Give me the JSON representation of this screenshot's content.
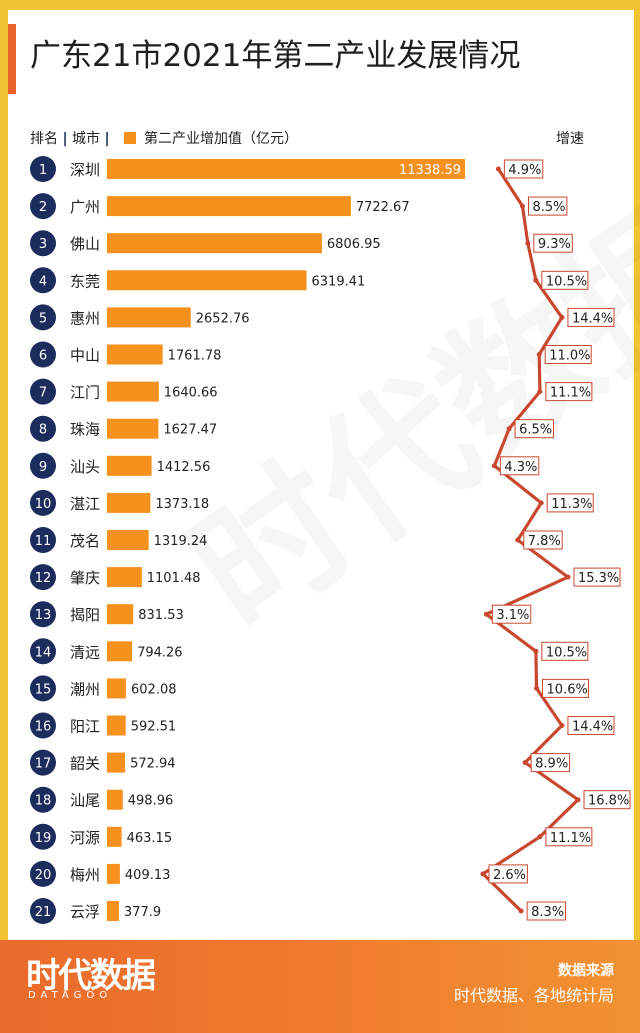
{
  "title": "广东21市2021年第二产业发展情况",
  "header": {
    "rank_label": "排名",
    "city_label": "城市",
    "sep": "|",
    "legend_label": "第二产业增加值（亿元）",
    "growth_label": "增速"
  },
  "watermark": "时代数据",
  "footer": {
    "logo": "时代数据",
    "logo_sub": "DATAGOO",
    "source_label": "数据来源",
    "source_text": "时代数据、各地统计局"
  },
  "colors": {
    "bar": "#f6911e",
    "rank_circle": "#1c2c5c",
    "growth_line": "#c9472f",
    "footer": "#ea6a2c",
    "frame": "#f2c332"
  },
  "chart_data": {
    "type": "bar",
    "categories": [
      "深圳",
      "广州",
      "佛山",
      "东莞",
      "惠州",
      "中山",
      "江门",
      "珠海",
      "汕头",
      "湛江",
      "茂名",
      "肇庆",
      "揭阳",
      "清远",
      "潮州",
      "阳江",
      "韶关",
      "汕尾",
      "河源",
      "梅州",
      "云浮"
    ],
    "ranks": [
      "1",
      "2",
      "3",
      "4",
      "5",
      "6",
      "7",
      "8",
      "9",
      "10",
      "11",
      "12",
      "13",
      "14",
      "15",
      "16",
      "17",
      "18",
      "19",
      "20",
      "21"
    ],
    "series": [
      {
        "name": "第二产业增加值（亿元）",
        "type": "bar",
        "values": [
          11338.59,
          7722.67,
          6806.95,
          6319.41,
          2652.76,
          1761.78,
          1640.66,
          1627.47,
          1412.56,
          1373.18,
          1319.24,
          1101.48,
          831.53,
          794.26,
          602.08,
          592.51,
          572.94,
          498.96,
          463.15,
          409.13,
          377.9
        ],
        "labels": [
          "11338.59",
          "7722.67",
          "6806.95",
          "6319.41",
          "2652.76",
          "1761.78",
          "1640.66",
          "1627.47",
          "1412.56",
          "1373.18",
          "1319.24",
          "1101.48",
          "831.53",
          "794.26",
          "602.08",
          "592.51",
          "572.94",
          "498.96",
          "463.15",
          "409.13",
          "377.9"
        ]
      },
      {
        "name": "增速",
        "type": "line",
        "values": [
          4.9,
          8.5,
          9.3,
          10.5,
          14.4,
          11.0,
          11.1,
          6.5,
          4.3,
          11.3,
          7.8,
          15.3,
          3.1,
          10.5,
          10.6,
          14.4,
          8.9,
          16.8,
          11.1,
          2.6,
          8.3
        ],
        "labels": [
          "4.9%",
          "8.5%",
          "9.3%",
          "10.5%",
          "14.4%",
          "11.0%",
          "11.1%",
          "6.5%",
          "4.3%",
          "11.3%",
          "7.8%",
          "15.3%",
          "3.1%",
          "10.5%",
          "10.6%",
          "14.4%",
          "8.9%",
          "16.8%",
          "11.1%",
          "2.6%",
          "8.3%"
        ]
      }
    ],
    "bar_max": 11338.59,
    "growth_range": [
      2.6,
      16.8
    ]
  }
}
